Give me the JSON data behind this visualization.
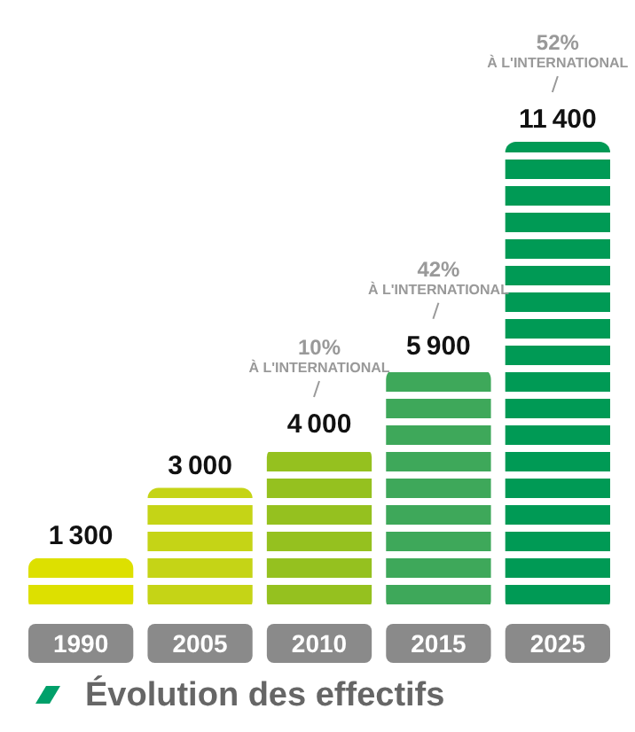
{
  "chart_data": {
    "type": "bar",
    "title": "Évolution des effectifs",
    "categories": [
      "1990",
      "2005",
      "2010",
      "2015",
      "2025"
    ],
    "values": [
      1300,
      3000,
      4000,
      5900,
      11400
    ],
    "colors": [
      "#dde000",
      "#c5d416",
      "#95c11f",
      "#3ea85a",
      "#009a55"
    ],
    "data_labels": true,
    "annotations": [
      "10%\nÀ L'INTERNATIONAL",
      "42%\nÀ L'INTERNATIONAL",
      "52%\nÀ L'INTERNATIONAL"
    ]
  }
}
